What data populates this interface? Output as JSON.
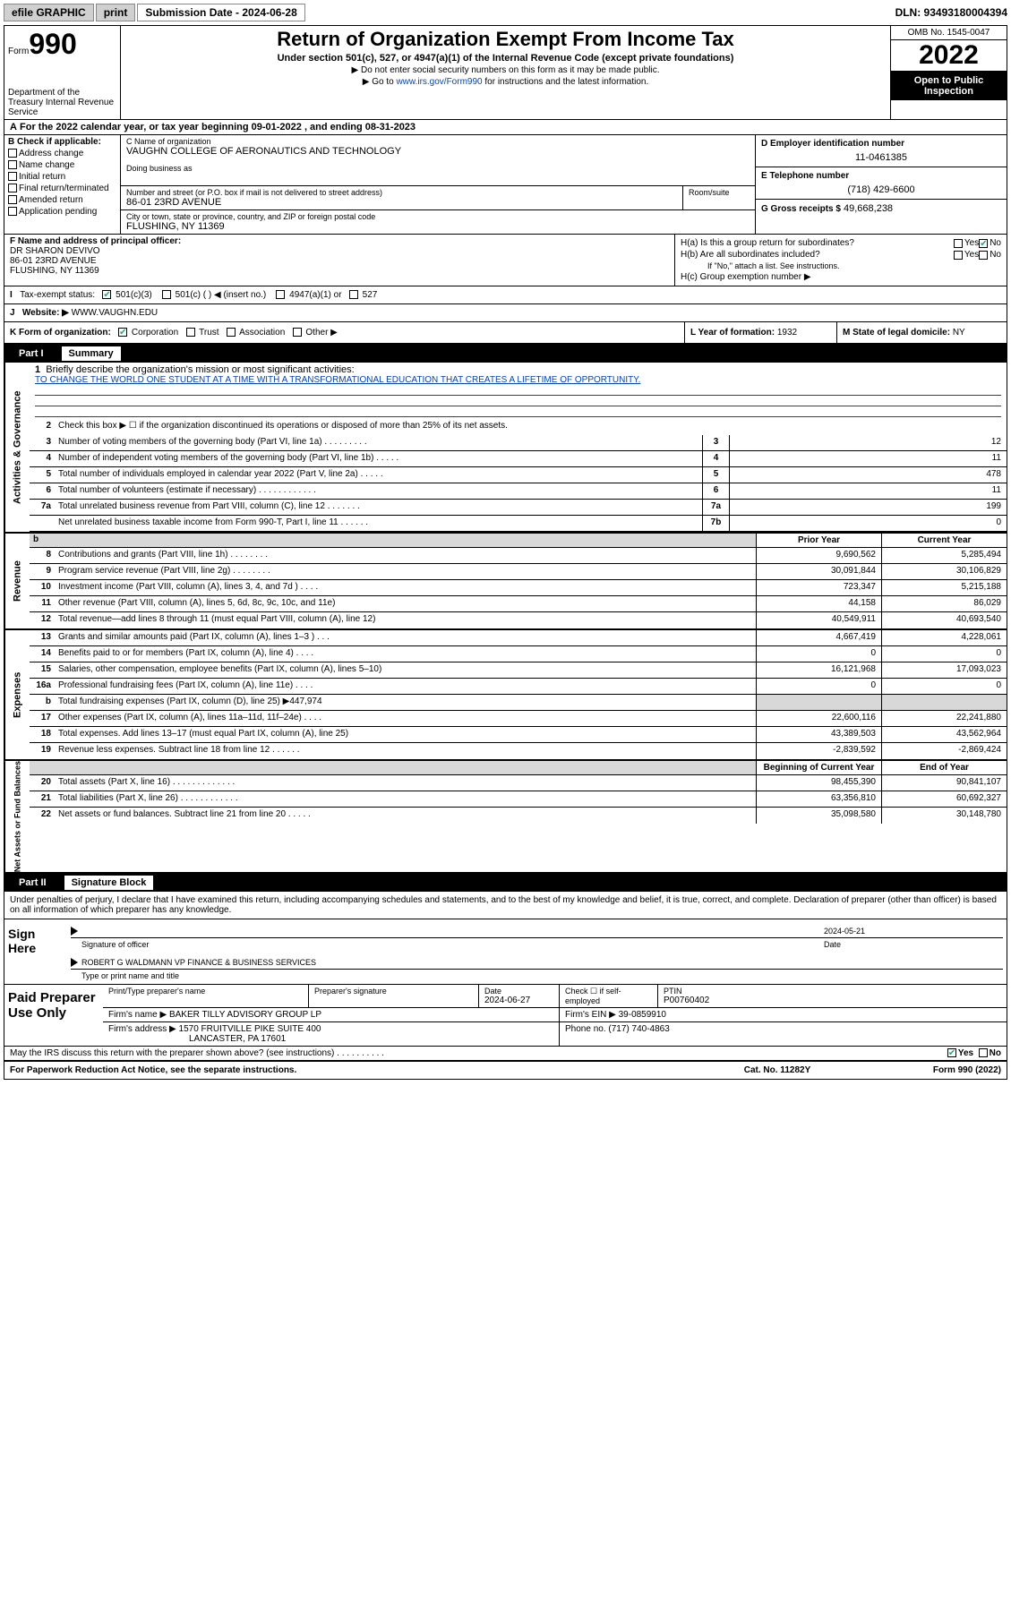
{
  "topbar": {
    "efile": "efile GRAPHIC",
    "print": "print",
    "subdate_label": "Submission Date - 2024-06-28",
    "dln": "DLN: 93493180004394"
  },
  "header": {
    "form_word": "Form",
    "form_num": "990",
    "dept": "Department of the Treasury\nInternal Revenue Service",
    "title": "Return of Organization Exempt From Income Tax",
    "sub": "Under section 501(c), 527, or 4947(a)(1) of the Internal Revenue Code (except private foundations)",
    "instr1": "▶ Do not enter social security numbers on this form as it may be made public.",
    "instr2_pre": "▶ Go to ",
    "instr2_link": "www.irs.gov/Form990",
    "instr2_post": " for instructions and the latest information.",
    "omb": "OMB No. 1545-0047",
    "year": "2022",
    "inspect": "Open to Public Inspection"
  },
  "rowA": "For the 2022 calendar year, or tax year beginning 09-01-2022    , and ending 08-31-2023",
  "boxB": {
    "title": "B Check if applicable:",
    "items": [
      "Address change",
      "Name change",
      "Initial return",
      "Final return/terminated",
      "Amended return",
      "Application pending"
    ]
  },
  "boxC": {
    "name_label": "C Name of organization",
    "name": "VAUGHN COLLEGE OF AERONAUTICS AND TECHNOLOGY",
    "dba_label": "Doing business as",
    "addr_label": "Number and street (or P.O. box if mail is not delivered to street address)",
    "addr": "86-01 23RD AVENUE",
    "room_label": "Room/suite",
    "city_label": "City or town, state or province, country, and ZIP or foreign postal code",
    "city": "FLUSHING, NY  11369"
  },
  "boxD": {
    "label": "D Employer identification number",
    "value": "11-0461385"
  },
  "boxE": {
    "label": "E Telephone number",
    "value": "(718) 429-6600"
  },
  "boxG": {
    "label": "G Gross receipts $",
    "value": "49,668,238"
  },
  "boxF": {
    "label": "F  Name and address of principal officer:",
    "name": "DR SHARON DEVIVO",
    "addr1": "86-01 23RD AVENUE",
    "addr2": "FLUSHING, NY  11369"
  },
  "boxH": {
    "ha": "H(a)  Is this a group return for subordinates?",
    "hb": "H(b)  Are all subordinates included?",
    "hb_note": "If \"No,\" attach a list. See instructions.",
    "hc": "H(c)  Group exemption number ▶",
    "yes": "Yes",
    "no": "No"
  },
  "boxI": {
    "label": "Tax-exempt status:",
    "opts": [
      "501(c)(3)",
      "501(c) (  ) ◀ (insert no.)",
      "4947(a)(1) or",
      "527"
    ]
  },
  "boxJ": {
    "label": "Website: ▶",
    "value": "WWW.VAUGHN.EDU"
  },
  "boxK": {
    "label": "K Form of organization:",
    "opts": [
      "Corporation",
      "Trust",
      "Association",
      "Other ▶"
    ]
  },
  "boxL": {
    "label": "L Year of formation:",
    "value": "1932"
  },
  "boxM": {
    "label": "M State of legal domicile:",
    "value": "NY"
  },
  "part1": {
    "label": "Part I",
    "title": "Summary"
  },
  "mission": {
    "q": "Briefly describe the organization's mission or most significant activities:",
    "text": "TO CHANGE THE WORLD ONE STUDENT AT A TIME WITH A TRANSFORMATIONAL EDUCATION THAT CREATES A LIFETIME OF OPPORTUNITY."
  },
  "governance": [
    {
      "n": "2",
      "d": "Check this box ▶ ☐  if the organization discontinued its operations or disposed of more than 25% of its net assets."
    },
    {
      "n": "3",
      "d": "Number of voting members of the governing body (Part VI, line 1a)  .    .    .    .    .    .    .    .    .",
      "c": "3",
      "v": "12"
    },
    {
      "n": "4",
      "d": "Number of independent voting members of the governing body (Part VI, line 1b)  .    .    .    .    .",
      "c": "4",
      "v": "11"
    },
    {
      "n": "5",
      "d": "Total number of individuals employed in calendar year 2022 (Part V, line 2a)   .    .    .    .    .",
      "c": "5",
      "v": "478"
    },
    {
      "n": "6",
      "d": "Total number of volunteers (estimate if necessary)  .    .    .    .    .    .    .    .    .    .    .    .",
      "c": "6",
      "v": "11"
    },
    {
      "n": "7a",
      "d": "Total unrelated business revenue from Part VIII, column (C), line 12  .    .    .    .    .    .    .",
      "c": "7a",
      "v": "199"
    },
    {
      "n": "",
      "d": "Net unrelated business taxable income from Form 990-T, Part I, line 11   .    .    .    .    .    .",
      "c": "7b",
      "v": "0"
    }
  ],
  "rev_exp_header": {
    "prior": "Prior Year",
    "current": "Current Year",
    "begin": "Beginning of Current Year",
    "end": "End of Year"
  },
  "revenue": [
    {
      "n": "8",
      "d": "Contributions and grants (Part VIII, line 1h)  .    .    .    .    .    .    .    .",
      "p": "9,690,562",
      "c": "5,285,494"
    },
    {
      "n": "9",
      "d": "Program service revenue (Part VIII, line 2g)   .    .    .    .    .    .    .    .",
      "p": "30,091,844",
      "c": "30,106,829"
    },
    {
      "n": "10",
      "d": "Investment income (Part VIII, column (A), lines 3, 4, and 7d )  .    .    .    .",
      "p": "723,347",
      "c": "5,215,188"
    },
    {
      "n": "11",
      "d": "Other revenue (Part VIII, column (A), lines 5, 6d, 8c, 9c, 10c, and 11e)",
      "p": "44,158",
      "c": "86,029"
    },
    {
      "n": "12",
      "d": "Total revenue—add lines 8 through 11 (must equal Part VIII, column (A), line 12)",
      "p": "40,549,911",
      "c": "40,693,540"
    }
  ],
  "expenses": [
    {
      "n": "13",
      "d": "Grants and similar amounts paid (Part IX, column (A), lines 1–3 )  .    .    .",
      "p": "4,667,419",
      "c": "4,228,061"
    },
    {
      "n": "14",
      "d": "Benefits paid to or for members (Part IX, column (A), line 4)  .    .    .    .",
      "p": "0",
      "c": "0"
    },
    {
      "n": "15",
      "d": "Salaries, other compensation, employee benefits (Part IX, column (A), lines 5–10)",
      "p": "16,121,968",
      "c": "17,093,023"
    },
    {
      "n": "16a",
      "d": "Professional fundraising fees (Part IX, column (A), line 11e)  .    .    .    .",
      "p": "0",
      "c": "0"
    },
    {
      "n": "b",
      "d": "Total fundraising expenses (Part IX, column (D), line 25) ▶447,974",
      "gray": true
    },
    {
      "n": "17",
      "d": "Other expenses (Part IX, column (A), lines 11a–11d, 11f–24e)  .    .    .    .",
      "p": "22,600,116",
      "c": "22,241,880"
    },
    {
      "n": "18",
      "d": "Total expenses. Add lines 13–17 (must equal Part IX, column (A), line 25)",
      "p": "43,389,503",
      "c": "43,562,964"
    },
    {
      "n": "19",
      "d": "Revenue less expenses. Subtract line 18 from line 12  .    .    .    .    .    .",
      "p": "-2,839,592",
      "c": "-2,869,424"
    }
  ],
  "netassets": [
    {
      "n": "20",
      "d": "Total assets (Part X, line 16)  .    .    .    .    .    .    .    .    .    .    .    .    .",
      "p": "98,455,390",
      "c": "90,841,107"
    },
    {
      "n": "21",
      "d": "Total liabilities (Part X, line 26)  .    .    .    .    .    .    .    .    .    .    .    .",
      "p": "63,356,810",
      "c": "60,692,327"
    },
    {
      "n": "22",
      "d": "Net assets or fund balances. Subtract line 21 from line 20  .    .    .    .    .",
      "p": "35,098,580",
      "c": "30,148,780"
    }
  ],
  "vtabs": {
    "gov": "Activities & Governance",
    "rev": "Revenue",
    "exp": "Expenses",
    "net": "Net Assets or Fund Balances"
  },
  "part2": {
    "label": "Part II",
    "title": "Signature Block"
  },
  "penalties": "Under penalties of perjury, I declare that I have examined this return, including accompanying schedules and statements, and to the best of my knowledge and belief, it is true, correct, and complete. Declaration of preparer (other than officer) is based on all information of which preparer has any knowledge.",
  "sign": {
    "label": "Sign Here",
    "sig_officer": "Signature of officer",
    "date": "2024-05-21",
    "date_label": "Date",
    "name": "ROBERT G WALDMANN  VP FINANCE & BUSINESS SERVICES",
    "name_label": "Type or print name and title"
  },
  "prep": {
    "label": "Paid Preparer Use Only",
    "h1": "Print/Type preparer's name",
    "h2": "Preparer's signature",
    "h3": "Date",
    "h3v": "2024-06-27",
    "h4": "Check ☐ if self-employed",
    "h5": "PTIN",
    "h5v": "P00760402",
    "firm_label": "Firm's name    ▶",
    "firm": "BAKER TILLY ADVISORY GROUP LP",
    "ein_label": "Firm's EIN ▶",
    "ein": "39-0859910",
    "addr_label": "Firm's address ▶",
    "addr1": "1570 FRUITVILLE PIKE SUITE 400",
    "addr2": "LANCASTER, PA  17601",
    "phone_label": "Phone no.",
    "phone": "(717) 740-4863"
  },
  "discuss": {
    "q": "May the IRS discuss this return with the preparer shown above? (see instructions)   .    .    .    .    .    .    .    .    .    .",
    "yes": "Yes",
    "no": "No"
  },
  "footer": {
    "l": "For Paperwork Reduction Act Notice, see the separate instructions.",
    "c": "Cat. No. 11282Y",
    "r": "Form 990 (2022)"
  }
}
